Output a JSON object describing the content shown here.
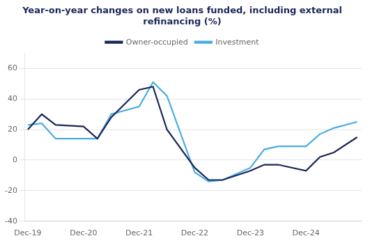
{
  "chart_data": {
    "type": "line",
    "title": "Year-on-year changes on new loans funded, including external\nrefinancing (%)",
    "x": [
      2019.0,
      2019.25,
      2019.5,
      2020.0,
      2020.25,
      2020.5,
      2021.0,
      2021.25,
      2021.5,
      2022.0,
      2022.25,
      2022.5,
      2023.0,
      2023.25,
      2023.5,
      2024.0,
      2024.25,
      2024.5,
      2024.92
    ],
    "series": [
      {
        "name": "Owner-occupied",
        "color": "#1a2558",
        "values": [
          20,
          30,
          23,
          22,
          14,
          28,
          46,
          48,
          20,
          -5,
          -13,
          -13,
          -7,
          -3,
          -3,
          -7,
          2,
          5,
          15
        ]
      },
      {
        "name": "Investment",
        "color": "#4aade0",
        "values": [
          23,
          24,
          14,
          14,
          14,
          30,
          35,
          51,
          42,
          -8,
          -14,
          -13,
          -5,
          7,
          9,
          9,
          17,
          21,
          25
        ]
      }
    ],
    "xlim": [
      2018.95,
      2025.0
    ],
    "xticks": [
      {
        "value": 2019.0,
        "label": "Dec-19"
      },
      {
        "value": 2020.0,
        "label": "Dec-20"
      },
      {
        "value": 2021.0,
        "label": "Dec-21"
      },
      {
        "value": 2022.0,
        "label": "Dec-22"
      },
      {
        "value": 2023.0,
        "label": "Dec-23"
      },
      {
        "value": 2024.0,
        "label": "Dec-24"
      }
    ],
    "ylim": [
      -40,
      70
    ],
    "yticks": [
      -40,
      -20,
      0,
      20,
      40,
      60
    ],
    "grid": "y",
    "legend": "top"
  }
}
